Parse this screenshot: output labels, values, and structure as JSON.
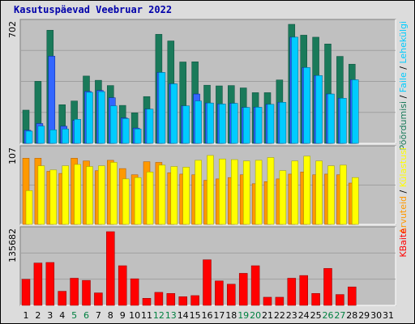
{
  "title": "Kasutuspäevad Veebruar 2022",
  "colors": {
    "background": "#dcdcdc",
    "plot_background": "#c0c0c0",
    "gridline": "#a0a0a0",
    "visits": "#006699",
    "visits_outline": "#1a7a5a",
    "pages": "#00ccff",
    "files": "#3366ff",
    "sites": "#ff9900",
    "hosts_files": "#ffff00",
    "kbytes": "#ff0000",
    "weekday_text": "#000000",
    "weekend_text": "#008040"
  },
  "chart_data": {
    "type": "bar",
    "days": [
      "1",
      "2",
      "3",
      "4",
      "5",
      "6",
      "7",
      "8",
      "9",
      "10",
      "11",
      "12",
      "13",
      "14",
      "15",
      "16",
      "17",
      "18",
      "19",
      "20",
      "21",
      "22",
      "23",
      "24",
      "25",
      "26",
      "27",
      "28",
      "29",
      "30",
      "31"
    ],
    "weekend_days": [
      "5",
      "6",
      "12",
      "13",
      "19",
      "20",
      "26",
      "27"
    ],
    "panels": [
      {
        "id": "hits",
        "ymax_label": "702",
        "ymax": 702,
        "legend": [
          {
            "text": "Pöördumisi",
            "color": "#1a7a5a"
          },
          {
            "text": " / ",
            "color": "#000000"
          },
          {
            "text": "Faile",
            "color": "#00ccff"
          },
          {
            "text": " / ",
            "color": "#000000"
          },
          {
            "text": "Lehekülgi",
            "color": "#00ccff"
          }
        ],
        "series": [
          {
            "name": "Pöördumisi",
            "values": [
              196,
              366,
              667,
              228,
              250,
              397,
              372,
              341,
              224,
              180,
              276,
              643,
              604,
              480,
              481,
              343,
              339,
              341,
              327,
              299,
              299,
              374,
              702,
              638,
              626,
              586,
              513,
              467,
              0,
              0,
              0
            ]
          },
          {
            "name": "Faile",
            "values": [
              77,
              117,
              514,
              101,
              135,
              306,
              312,
              269,
              150,
              90,
              202,
              418,
              351,
              221,
              291,
              238,
              232,
              236,
              212,
              213,
              230,
              242,
              626,
              447,
              400,
              291,
              266,
              375,
              0,
              0,
              0
            ]
          },
          {
            "name": "Lehekülgi",
            "values": [
              72,
              102,
              80,
              85,
              142,
              301,
              305,
              221,
              146,
              85,
              202,
              418,
              351,
              221,
              250,
              238,
              232,
              236,
              212,
              213,
              230,
              242,
              626,
              447,
              400,
              291,
              266,
              375,
              0,
              0,
              0
            ]
          }
        ]
      },
      {
        "id": "sites",
        "ymax_label": "107",
        "ymax": 107,
        "legend": [
          {
            "text": "Arvuteid",
            "color": "#ff9900"
          },
          {
            "text": " / ",
            "color": "#000000"
          },
          {
            "text": "Külastusi",
            "color": "#ffff00"
          }
        ],
        "series": [
          {
            "name": "Arvuteid",
            "values": [
              96,
              96,
              77,
              74,
              96,
              92,
              78,
              93,
              81,
              72,
              91,
              90,
              75,
              73,
              72,
              64,
              66,
              68,
              72,
              59,
              62,
              66,
              73,
              76,
              72,
              73,
              72,
              60,
              0,
              0,
              0
            ]
          },
          {
            "name": "Külastusi",
            "values": [
              49,
              85,
              79,
              85,
              87,
              84,
              85,
              90,
              66,
              68,
              76,
              86,
              84,
              83,
              93,
              100,
              95,
              94,
              92,
              93,
              97,
              78,
              92,
              99,
              92,
              85,
              86,
              68,
              0,
              0,
              0
            ]
          }
        ]
      },
      {
        "id": "kbytes",
        "ymax_label": "135682",
        "ymax": 135682,
        "legend": [
          {
            "text": "KBaite",
            "color": "#ff0000"
          }
        ],
        "series": [
          {
            "name": "KBaite",
            "values": [
              48000,
              78000,
              79000,
              26000,
              50000,
              46000,
              23000,
              135682,
              73000,
              49000,
              13000,
              24000,
              22000,
              16000,
              18000,
              84000,
              45000,
              39000,
              59000,
              73000,
              15000,
              15000,
              50000,
              55000,
              22000,
              68000,
              20000,
              34000,
              0,
              0,
              0
            ]
          }
        ]
      }
    ]
  }
}
